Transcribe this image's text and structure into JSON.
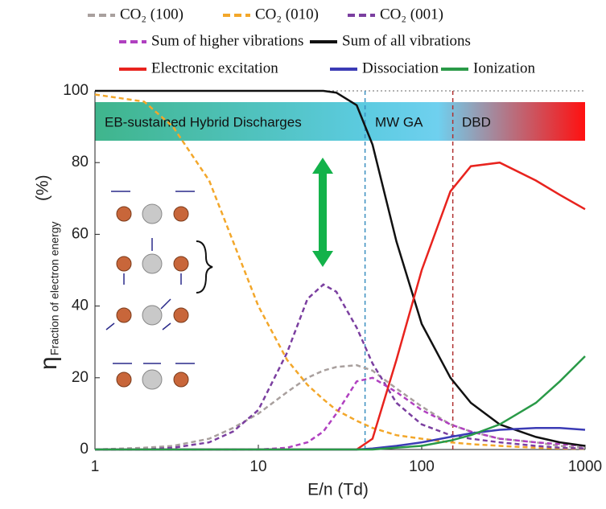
{
  "chart_data": {
    "type": "line",
    "x_label": "E/n (Td)",
    "y_label": "η",
    "y_label_sub": "Fraction of electron energy",
    "y_label_unit": "(%)",
    "log_x": true,
    "xlim": [
      1,
      1000
    ],
    "xticks": [
      1,
      10,
      100,
      1000
    ],
    "ylim": [
      0,
      100
    ],
    "yticks": [
      0,
      20,
      40,
      60,
      80,
      100
    ],
    "regions": [
      "EB-sustained Hybrid Discharges",
      "MW  GA",
      "DBD"
    ],
    "reference_lines": [
      {
        "x": 45,
        "color": "#3a8fc0"
      },
      {
        "x": 155,
        "color": "#b03030"
      }
    ],
    "x": [
      1,
      2,
      3,
      5,
      7,
      10,
      15,
      20,
      25,
      30,
      40,
      50,
      70,
      100,
      150,
      200,
      300,
      500,
      700,
      1000
    ],
    "series": [
      {
        "name": "CO₂ (100)",
        "color": "#a9a09e",
        "dashed": true,
        "values": [
          0,
          0.5,
          1,
          3,
          6,
          10,
          16,
          20,
          22,
          23,
          23.5,
          22,
          17,
          12,
          7,
          5,
          3,
          2,
          1,
          0.5
        ]
      },
      {
        "name": "CO₂ (010)",
        "color": "#f3a72a",
        "dashed": true,
        "values": [
          99,
          97,
          90,
          75,
          58,
          40,
          25,
          18,
          14,
          11,
          8,
          6,
          4,
          3,
          2,
          1.5,
          1,
          0.5,
          0.3,
          0.2
        ]
      },
      {
        "name": "CO₂ (001)",
        "color": "#7b3fa0",
        "dashed": true,
        "values": [
          0,
          0,
          0.5,
          2,
          5,
          11,
          27,
          42,
          46,
          44,
          34,
          24,
          13,
          7,
          4,
          3,
          2,
          1,
          0.5,
          0.3
        ]
      },
      {
        "name": "Sum of higher vibrations",
        "color": "#b040c0",
        "dashed": true,
        "values": [
          0,
          0,
          0,
          0,
          0,
          0,
          0.5,
          2,
          5,
          10,
          19,
          20,
          16,
          11,
          7,
          5,
          3,
          2,
          1.5,
          1
        ]
      },
      {
        "name": "Sum of all vibrations",
        "color": "#111111",
        "dashed": false,
        "values": [
          100,
          100,
          100,
          100,
          100,
          100,
          100,
          100,
          100,
          99.5,
          96,
          85,
          58,
          35,
          20,
          13,
          7,
          3.5,
          2,
          1
        ]
      },
      {
        "name": "Electronic excitation",
        "color": "#e8231e",
        "dashed": false,
        "values": [
          0,
          0,
          0,
          0,
          0,
          0,
          0,
          0,
          0,
          0,
          0,
          3,
          25,
          50,
          72,
          79,
          80,
          75,
          71,
          67
        ]
      },
      {
        "name": "Dissociation",
        "color": "#3b3bb5",
        "dashed": false,
        "values": [
          0,
          0,
          0,
          0,
          0,
          0,
          0,
          0,
          0,
          0,
          0,
          0.3,
          1,
          2,
          3.5,
          4.5,
          5.5,
          6,
          6,
          5.5
        ]
      },
      {
        "name": "Ionization",
        "color": "#2a9a48",
        "dashed": false,
        "values": [
          0,
          0,
          0,
          0,
          0,
          0,
          0,
          0,
          0,
          0,
          0,
          0,
          0.5,
          1,
          2.5,
          4,
          7,
          13,
          19,
          26
        ]
      }
    ]
  }
}
